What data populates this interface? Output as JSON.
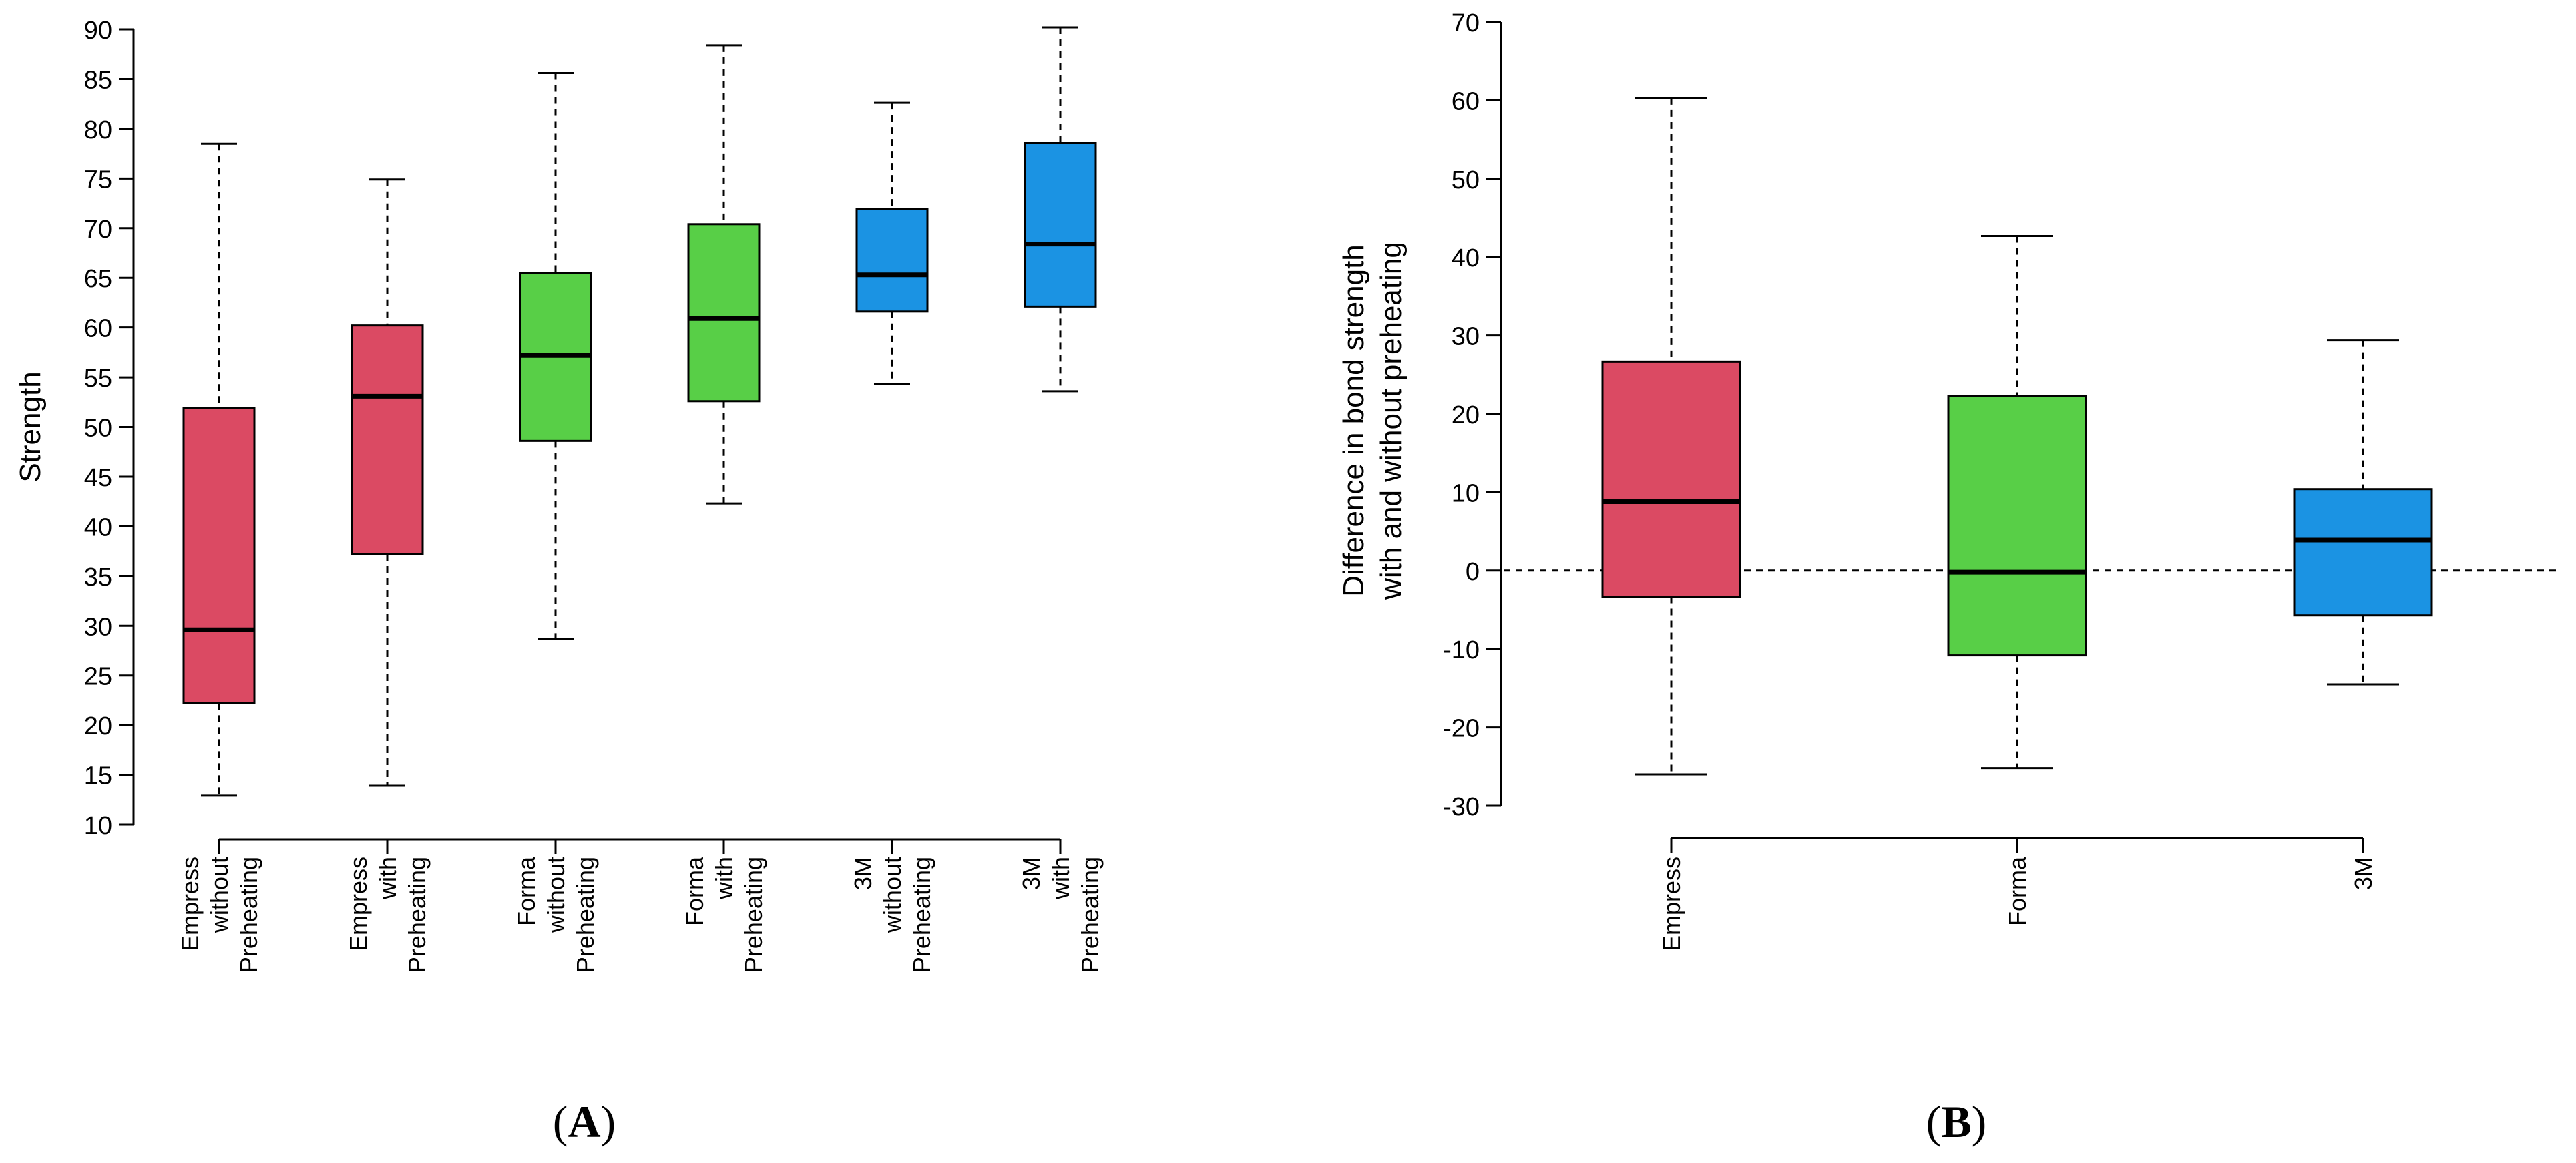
{
  "colors": {
    "empress": "#DB4A63",
    "forma": "#58CF47",
    "3m": "#1B93E3"
  },
  "chart_data": [
    {
      "type": "boxplot",
      "panel": "A",
      "panel_label": {
        "open": "(",
        "letter": "A",
        "close": ")"
      },
      "title": "",
      "ylabel": "Strength",
      "ylim": [
        10,
        90
      ],
      "yticks": [
        10,
        15,
        20,
        25,
        30,
        35,
        40,
        45,
        50,
        55,
        60,
        65,
        70,
        75,
        80,
        85,
        90
      ],
      "categories": [
        {
          "lines": [
            "Empress",
            "without",
            "Preheating"
          ],
          "color_key": "empress"
        },
        {
          "lines": [
            "Empress",
            "with",
            "Preheating"
          ],
          "color_key": "empress"
        },
        {
          "lines": [
            "Forma",
            "without",
            "Preheating"
          ],
          "color_key": "forma"
        },
        {
          "lines": [
            "Forma",
            "with",
            "Preheating"
          ],
          "color_key": "forma"
        },
        {
          "lines": [
            "3M",
            "without",
            "Preheating"
          ],
          "color_key": "3m"
        },
        {
          "lines": [
            "3M",
            "with",
            "Preheating"
          ],
          "color_key": "3m"
        }
      ],
      "boxes": [
        {
          "min": 12.9,
          "q1": 22.2,
          "median": 29.6,
          "q3": 51.9,
          "max": 78.5
        },
        {
          "min": 13.9,
          "q1": 37.2,
          "median": 53.1,
          "q3": 60.2,
          "max": 74.9
        },
        {
          "min": 28.7,
          "q1": 48.6,
          "median": 57.2,
          "q3": 65.5,
          "max": 85.6
        },
        {
          "min": 42.3,
          "q1": 52.6,
          "median": 60.9,
          "q3": 70.4,
          "max": 88.4
        },
        {
          "min": 54.3,
          "q1": 61.6,
          "median": 65.3,
          "q3": 71.9,
          "max": 82.6
        },
        {
          "min": 53.6,
          "q1": 62.1,
          "median": 68.4,
          "q3": 78.6,
          "max": 90.2
        }
      ]
    },
    {
      "type": "boxplot",
      "panel": "B",
      "panel_label": {
        "open": "(",
        "letter": "B",
        "close": ")"
      },
      "title": "",
      "ylabel_lines": [
        "Difference in bond strength",
        "with and without preheating"
      ],
      "ylim": [
        -30,
        70
      ],
      "yticks": [
        -30,
        -20,
        -10,
        0,
        10,
        20,
        30,
        40,
        50,
        60,
        70
      ],
      "reference_line": 0,
      "categories": [
        {
          "lines": [
            "Empress"
          ],
          "color_key": "empress"
        },
        {
          "lines": [
            "Forma"
          ],
          "color_key": "forma"
        },
        {
          "lines": [
            "3M"
          ],
          "color_key": "3m"
        }
      ],
      "boxes": [
        {
          "min": -26.0,
          "q1": -3.3,
          "median": 8.8,
          "q3": 26.7,
          "max": 60.3
        },
        {
          "min": -25.2,
          "q1": -10.8,
          "median": -0.2,
          "q3": 22.3,
          "max": 42.7
        },
        {
          "min": -14.5,
          "q1": -5.7,
          "median": 3.9,
          "q3": 10.4,
          "max": 29.4
        }
      ]
    }
  ]
}
